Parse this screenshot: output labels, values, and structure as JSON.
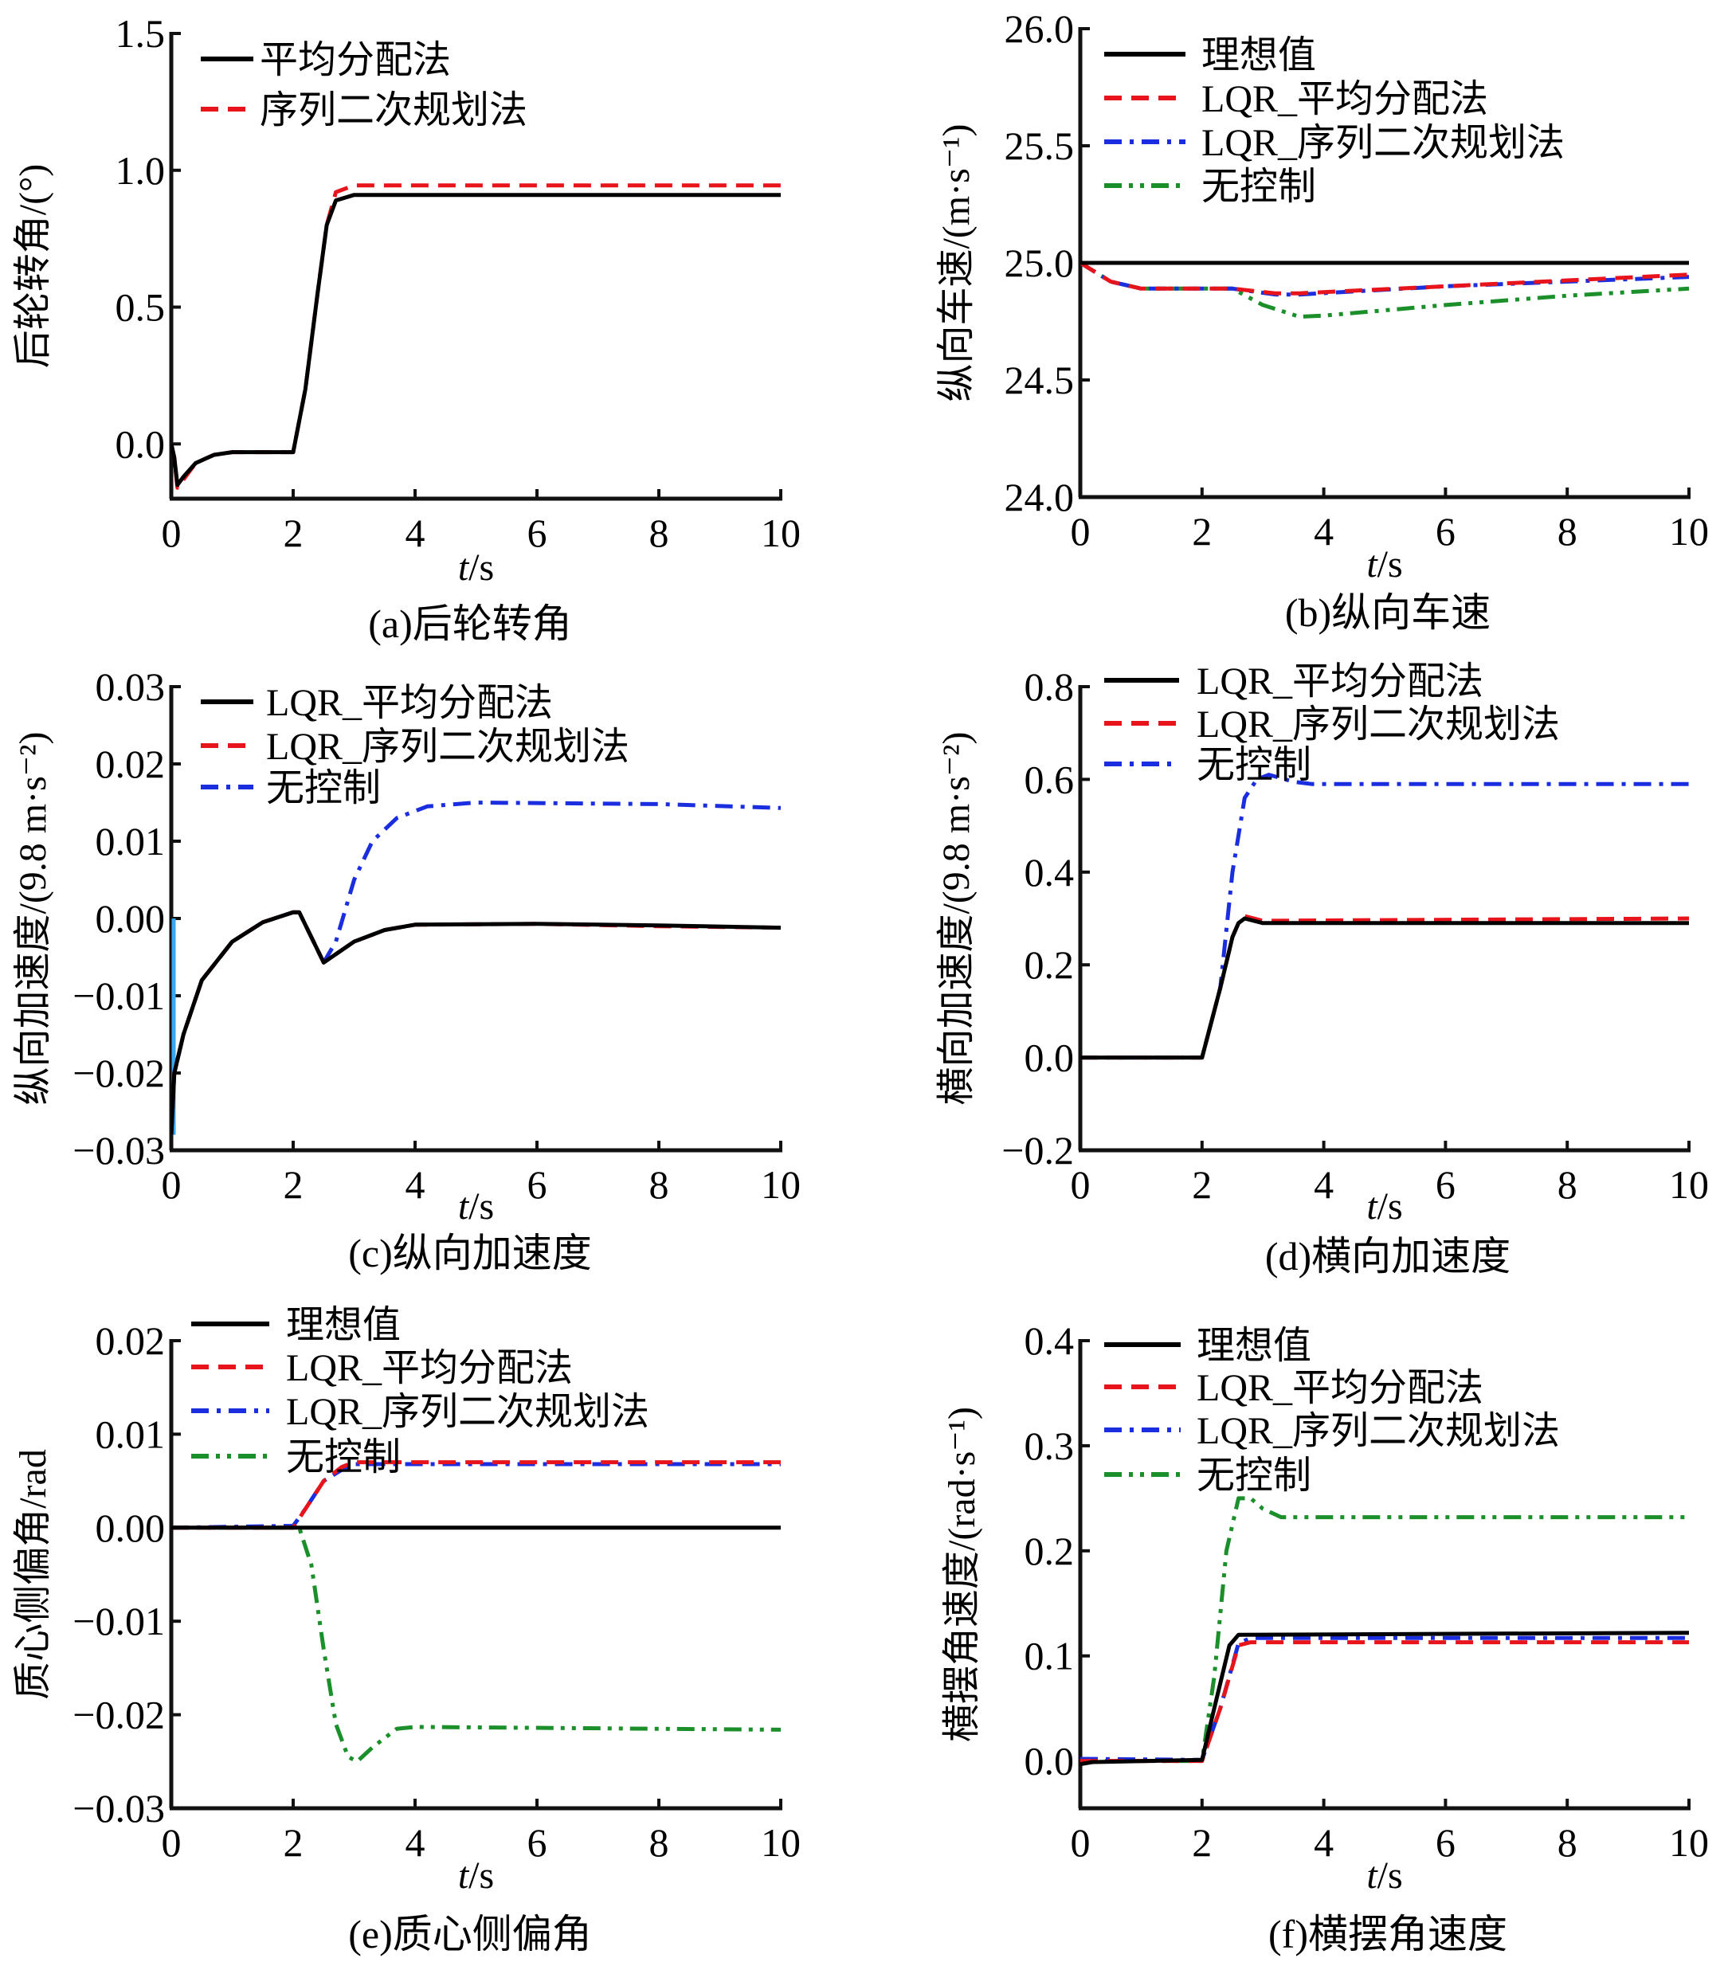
{
  "chart_data": [
    {
      "id": "a",
      "type": "line",
      "caption": "(a)后轮转角",
      "xlabel": "t/s",
      "ylabel": "后轮转角/(°)",
      "xlim": [
        0,
        10
      ],
      "ylim": [
        -0.2,
        1.5
      ],
      "xticks": [
        0,
        2,
        4,
        6,
        8,
        10
      ],
      "yticks": [
        0.0,
        0.5,
        1.0,
        1.5
      ],
      "ytick_labels": [
        "0.0",
        "0.5",
        "1.0",
        "1.5"
      ],
      "grid": false,
      "legend_position": "top-left",
      "series": [
        {
          "name": "平均分配法",
          "color": "#000000",
          "style": "solid",
          "x": [
            0,
            0.05,
            0.1,
            0.2,
            0.4,
            0.7,
            1,
            2,
            2.2,
            2.4,
            2.55,
            2.7,
            3,
            4,
            6,
            10
          ],
          "y": [
            0,
            -0.05,
            -0.15,
            -0.12,
            -0.07,
            -0.04,
            -0.03,
            -0.03,
            0.2,
            0.55,
            0.8,
            0.89,
            0.91,
            0.91,
            0.91,
            0.91
          ]
        },
        {
          "name": "序列二次规划法",
          "color": "#e8141c",
          "style": "dash",
          "x": [
            0,
            0.05,
            0.1,
            0.2,
            0.4,
            0.7,
            1,
            2,
            2.2,
            2.4,
            2.55,
            2.7,
            3,
            4,
            6,
            10
          ],
          "y": [
            0,
            -0.05,
            -0.16,
            -0.13,
            -0.07,
            -0.04,
            -0.03,
            -0.03,
            0.2,
            0.55,
            0.8,
            0.92,
            0.945,
            0.945,
            0.945,
            0.945
          ]
        }
      ]
    },
    {
      "id": "b",
      "type": "line",
      "caption": "(b)纵向车速",
      "xlabel": "t/s",
      "ylabel": "纵向车速/(m·s⁻¹)",
      "xlim": [
        0,
        10
      ],
      "ylim": [
        24.0,
        26.0
      ],
      "xticks": [
        0,
        2,
        4,
        6,
        8,
        10
      ],
      "yticks": [
        24.0,
        24.5,
        25.0,
        25.5,
        26.0
      ],
      "ytick_labels": [
        "24.0",
        "24.5",
        "25.0",
        "25.5",
        "26.0"
      ],
      "grid": false,
      "legend_position": "top-left",
      "series": [
        {
          "name": "理想值",
          "color": "#000000",
          "style": "solid",
          "x": [
            0,
            10
          ],
          "y": [
            25.0,
            25.0
          ]
        },
        {
          "name": "LQR_平均分配法",
          "color": "#e8141c",
          "style": "dash",
          "x": [
            0,
            0.5,
            1,
            2.5,
            3.2,
            3.6,
            6,
            8,
            10
          ],
          "y": [
            25.0,
            24.92,
            24.89,
            24.89,
            24.87,
            24.87,
            24.9,
            24.925,
            24.95
          ]
        },
        {
          "name": "LQR_序列二次规划法",
          "color": "#1a2ee0",
          "style": "dashdot",
          "x": [
            0,
            0.5,
            1,
            2.5,
            3.2,
            3.6,
            6,
            8,
            10
          ],
          "y": [
            25.0,
            24.92,
            24.89,
            24.89,
            24.865,
            24.865,
            24.9,
            24.92,
            24.94
          ]
        },
        {
          "name": "无控制",
          "color": "#1a8f2a",
          "style": "dashdotdot",
          "x": [
            0,
            0.5,
            1,
            2.5,
            3,
            3.6,
            4,
            6,
            8,
            10
          ],
          "y": [
            25.0,
            24.92,
            24.89,
            24.89,
            24.82,
            24.77,
            24.775,
            24.82,
            24.86,
            24.89
          ]
        }
      ]
    },
    {
      "id": "c",
      "type": "line",
      "caption": "(c)纵向加速度",
      "xlabel": "t/s",
      "ylabel": "纵向加速度/(9.8 m·s⁻²)",
      "xlim": [
        0,
        10
      ],
      "ylim": [
        -0.03,
        0.03
      ],
      "xticks": [
        0,
        2,
        4,
        6,
        8,
        10
      ],
      "yticks": [
        -0.03,
        -0.02,
        -0.01,
        0.0,
        0.01,
        0.02,
        0.03
      ],
      "ytick_labels": [
        "−0.03",
        "−0.02",
        "−0.01",
        "0.00",
        "0.01",
        "0.02",
        "0.03"
      ],
      "grid": false,
      "legend_position": "top-left",
      "series": [
        {
          "name": "LQR_平均分配法",
          "color": "#000000",
          "style": "solid",
          "x": [
            0,
            0.05,
            0.2,
            0.5,
            1,
            1.5,
            2,
            2.1,
            2.5,
            3,
            3.5,
            4,
            6,
            8,
            10
          ],
          "y": [
            -0.028,
            -0.02,
            -0.015,
            -0.008,
            -0.003,
            -0.0005,
            0.0008,
            0.0008,
            -0.0057,
            -0.003,
            -0.0015,
            -0.0008,
            -0.0007,
            -0.0009,
            -0.0012
          ]
        },
        {
          "name": "LQR_序列二次规划法",
          "color": "#e8141c",
          "style": "dash",
          "x": [
            0,
            0.05,
            0.2,
            0.5,
            1,
            1.5,
            2,
            2.1,
            2.5,
            3,
            3.5,
            4,
            6,
            8,
            10
          ],
          "y": [
            -0.028,
            -0.02,
            -0.015,
            -0.008,
            -0.003,
            -0.0005,
            0.0008,
            0.0008,
            -0.0057,
            -0.003,
            -0.0015,
            -0.0008,
            -0.0007,
            -0.001,
            -0.0012
          ]
        },
        {
          "name": "无控制",
          "color": "#1a2ee0",
          "style": "dashdot",
          "x": [
            0,
            0.05,
            0.2,
            0.5,
            1,
            1.5,
            2,
            2.1,
            2.5,
            2.7,
            3,
            3.3,
            3.7,
            4.2,
            5,
            8,
            10
          ],
          "y": [
            -0.028,
            -0.02,
            -0.015,
            -0.008,
            -0.003,
            -0.0005,
            0.0008,
            0.0008,
            -0.0057,
            -0.003,
            0.005,
            0.01,
            0.013,
            0.0145,
            0.015,
            0.0148,
            0.0143
          ]
        }
      ]
    },
    {
      "id": "d",
      "type": "line",
      "caption": "(d)横向加速度",
      "xlabel": "t/s",
      "ylabel": "横向加速度/(9.8 m·s⁻²)",
      "xlim": [
        0,
        10
      ],
      "ylim": [
        -0.2,
        0.8
      ],
      "xticks": [
        0,
        2,
        4,
        6,
        8,
        10
      ],
      "yticks": [
        -0.2,
        0.0,
        0.2,
        0.4,
        0.6,
        0.8
      ],
      "ytick_labels": [
        "−0.2",
        "0.0",
        "0.2",
        "0.4",
        "0.6",
        "0.8"
      ],
      "grid": false,
      "legend_position": "top-left",
      "series": [
        {
          "name": "LQR_平均分配法",
          "color": "#000000",
          "style": "solid",
          "x": [
            0,
            2,
            2.3,
            2.5,
            2.6,
            2.7,
            3,
            10
          ],
          "y": [
            0,
            0,
            0.15,
            0.26,
            0.29,
            0.3,
            0.29,
            0.29
          ]
        },
        {
          "name": "LQR_序列二次规划法",
          "color": "#e8141c",
          "style": "dash",
          "x": [
            0,
            2,
            2.3,
            2.5,
            2.6,
            2.7,
            3,
            10
          ],
          "y": [
            0,
            0,
            0.15,
            0.26,
            0.29,
            0.305,
            0.295,
            0.3
          ]
        },
        {
          "name": "无控制",
          "color": "#1a2ee0",
          "style": "dashdot",
          "x": [
            0,
            2,
            2.3,
            2.5,
            2.7,
            2.9,
            3.1,
            3.5,
            3.8,
            10
          ],
          "y": [
            0,
            0,
            0.15,
            0.4,
            0.56,
            0.6,
            0.61,
            0.595,
            0.59,
            0.59
          ]
        }
      ]
    },
    {
      "id": "e",
      "type": "line",
      "caption": "(e)质心侧偏角",
      "xlabel": "t/s",
      "ylabel": "质心侧偏角/rad",
      "xlim": [
        0,
        10
      ],
      "ylim": [
        -0.03,
        0.02
      ],
      "xticks": [
        0,
        2,
        4,
        6,
        8,
        10
      ],
      "yticks": [
        -0.03,
        -0.02,
        -0.01,
        0.0,
        0.01,
        0.02
      ],
      "ytick_labels": [
        "−0.03",
        "−0.02",
        "−0.01",
        "0.00",
        "0.01",
        "0.02"
      ],
      "grid": false,
      "legend_position": "top-left",
      "series": [
        {
          "name": "理想值",
          "color": "#000000",
          "style": "solid",
          "x": [
            0,
            10
          ],
          "y": [
            0,
            0
          ]
        },
        {
          "name": "LQR_平均分配法",
          "color": "#e8141c",
          "style": "dash",
          "x": [
            0,
            2,
            2.2,
            2.5,
            2.8,
            3,
            10
          ],
          "y": [
            0,
            0,
            0.002,
            0.005,
            0.0065,
            0.007,
            0.007
          ]
        },
        {
          "name": "LQR_序列二次规划法",
          "color": "#1a2ee0",
          "style": "dashdot",
          "x": [
            0,
            2,
            2.2,
            2.5,
            2.8,
            3,
            10
          ],
          "y": [
            0,
            0.0002,
            0.002,
            0.005,
            0.0062,
            0.0068,
            0.0068
          ]
        },
        {
          "name": "无控制",
          "color": "#1a8f2a",
          "style": "dashdotdot",
          "x": [
            0,
            2.1,
            2.3,
            2.5,
            2.7,
            2.9,
            3.05,
            3.3,
            3.7,
            4,
            10
          ],
          "y": [
            0,
            0,
            -0.004,
            -0.013,
            -0.021,
            -0.0245,
            -0.025,
            -0.0235,
            -0.0215,
            -0.0213,
            -0.0216
          ]
        }
      ]
    },
    {
      "id": "f",
      "type": "line",
      "caption": "(f)横摆角速度",
      "xlabel": "t/s",
      "ylabel": "横摆角速度/(rad·s⁻¹)",
      "xlim": [
        0,
        10
      ],
      "ylim": [
        -0.045,
        0.4
      ],
      "xticks": [
        0,
        2,
        4,
        6,
        8,
        10
      ],
      "yticks": [
        0.0,
        0.1,
        0.2,
        0.3,
        0.4
      ],
      "ytick_labels": [
        "0.0",
        "0.1",
        "0.2",
        "0.3",
        "0.4"
      ],
      "grid": false,
      "legend_position": "top-left",
      "series": [
        {
          "name": "理想值",
          "color": "#000000",
          "style": "solid",
          "x": [
            0,
            0.2,
            2,
            2.2,
            2.45,
            2.6,
            10
          ],
          "y": [
            -0.003,
            -0.001,
            0.001,
            0.05,
            0.11,
            0.12,
            0.122
          ]
        },
        {
          "name": "LQR_平均分配法",
          "color": "#e8141c",
          "style": "dash",
          "x": [
            0,
            2,
            2.3,
            2.6,
            2.8,
            10
          ],
          "y": [
            0,
            0,
            0.05,
            0.11,
            0.113,
            0.113
          ]
        },
        {
          "name": "LQR_序列二次规划法",
          "color": "#1a2ee0",
          "style": "dashdot",
          "x": [
            0,
            2,
            2.3,
            2.6,
            2.8,
            10
          ],
          "y": [
            0.002,
            0.001,
            0.05,
            0.112,
            0.117,
            0.117
          ]
        },
        {
          "name": "无控制",
          "color": "#1a8f2a",
          "style": "dashdotdot",
          "x": [
            0,
            2,
            2.2,
            2.4,
            2.6,
            2.8,
            3.0,
            3.3,
            10
          ],
          "y": [
            0,
            0,
            0.08,
            0.2,
            0.25,
            0.25,
            0.24,
            0.232,
            0.232
          ]
        }
      ]
    }
  ]
}
